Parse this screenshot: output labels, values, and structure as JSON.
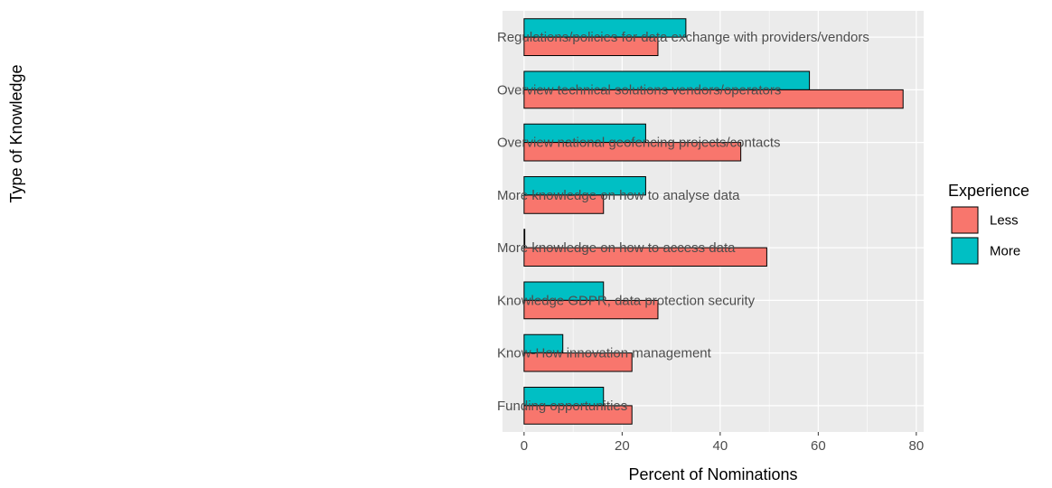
{
  "chart_data": {
    "type": "bar",
    "orientation": "horizontal",
    "categories": [
      "Regulations/policies for data exchange with providers/vendors",
      "Overview technical solutions vendors/operators",
      "Overview national geofencing projects/contacts",
      "More knowledge on how to analyse data",
      "More knowledge on how to access data",
      "Knowledge GDPR, data protection security",
      "Know-How innovation management",
      "Funding opportunities"
    ],
    "series": [
      {
        "name": "Less",
        "color": "#F8766D",
        "values": [
          27.3,
          77.3,
          44.2,
          16.2,
          49.5,
          27.3,
          22.0,
          22.0
        ]
      },
      {
        "name": "More",
        "color": "#00BFC4",
        "values": [
          33.0,
          58.2,
          24.8,
          24.8,
          0,
          16.2,
          7.9,
          16.2
        ]
      }
    ],
    "xlabel": "Percent of Nominations",
    "ylabel": "Type of Knowledge",
    "xlim": [
      -4.4,
      81.5
    ],
    "xticks": [
      "0",
      "20",
      "40",
      "60",
      "80"
    ],
    "xtick_values": [
      0,
      20,
      40,
      60,
      80
    ],
    "grid": true,
    "legend": {
      "title": "Experience",
      "placement": "right",
      "entries": [
        "Less",
        "More"
      ]
    }
  }
}
